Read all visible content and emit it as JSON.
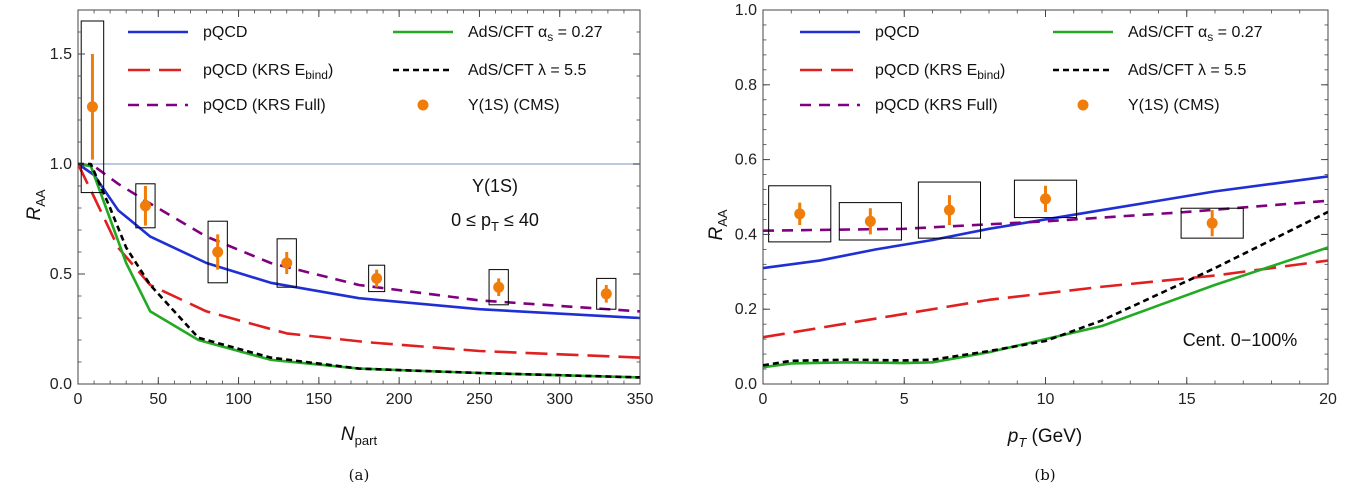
{
  "chart_data": [
    {
      "type": "line",
      "caption": "(a)",
      "xlabel": "N",
      "xlabel_sub": "part",
      "ylabel": "R",
      "ylabel_sub": "AA",
      "xlim": [
        0,
        350
      ],
      "ylim": [
        0,
        1.7
      ],
      "xticks": [
        "0",
        "50",
        "100",
        "150",
        "200",
        "250",
        "300",
        "350"
      ],
      "yticks": [
        "0.0",
        "0.5",
        "1.0",
        "1.5"
      ],
      "reference_line": 1.0,
      "annotations": [
        "Υ(1S)",
        "0 ≤ p",
        "T",
        " ≤ 40"
      ],
      "series": [
        {
          "name": "pQCD",
          "color": "#1f2fd4",
          "style": "solid",
          "x": [
            0,
            10,
            25,
            45,
            80,
            120,
            175,
            250,
            350
          ],
          "y": [
            1.0,
            0.95,
            0.79,
            0.67,
            0.55,
            0.46,
            0.39,
            0.34,
            0.3
          ]
        },
        {
          "name": "pQCD (KRS E",
          "name_sub": "bind",
          "name_suffix": ")",
          "color": "#e02020",
          "style": "longdash",
          "x": [
            0,
            10,
            25,
            45,
            80,
            130,
            180,
            250,
            350
          ],
          "y": [
            1.0,
            0.85,
            0.62,
            0.45,
            0.33,
            0.23,
            0.19,
            0.15,
            0.12
          ]
        },
        {
          "name": "pQCD (KRS Full)",
          "color": "#800080",
          "style": "dash",
          "x": [
            0,
            10,
            25,
            45,
            80,
            120,
            175,
            250,
            350
          ],
          "y": [
            1.0,
            0.99,
            0.91,
            0.82,
            0.67,
            0.55,
            0.45,
            0.38,
            0.33
          ]
        },
        {
          "name": "AdS/CFT α",
          "name_sub": "s",
          "name_suffix": " = 0.27",
          "color": "#22aa22",
          "style": "solid",
          "x": [
            0,
            8,
            20,
            30,
            45,
            75,
            120,
            175,
            250,
            350
          ],
          "y": [
            1.0,
            0.99,
            0.75,
            0.55,
            0.33,
            0.2,
            0.11,
            0.07,
            0.05,
            0.03
          ]
        },
        {
          "name": "AdS/CFT λ = 5.5",
          "color": "#000000",
          "style": "shortdash",
          "x": [
            0,
            8,
            20,
            30,
            45,
            75,
            120,
            175,
            250,
            350
          ],
          "y": [
            1.0,
            1.0,
            0.8,
            0.62,
            0.45,
            0.21,
            0.12,
            0.07,
            0.05,
            0.03
          ]
        },
        {
          "name": "Υ(1S) (CMS)",
          "color": "#f07d0a",
          "style": "points",
          "x": [
            9,
            42,
            87,
            130,
            186,
            262,
            329
          ],
          "y": [
            1.26,
            0.81,
            0.6,
            0.55,
            0.48,
            0.44,
            0.41
          ],
          "err": [
            0.24,
            0.09,
            0.08,
            0.05,
            0.04,
            0.04,
            0.04
          ],
          "sys_halfwidth_x": [
            7,
            6,
            6,
            6,
            5,
            6,
            6
          ],
          "sys": [
            0.39,
            0.1,
            0.14,
            0.11,
            0.06,
            0.08,
            0.07
          ]
        }
      ]
    },
    {
      "type": "line",
      "caption": "(b)",
      "xlabel": "p",
      "xlabel_sub": "T",
      "xlabel_suffix": "  (GeV)",
      "ylabel": "R",
      "ylabel_sub": "AA",
      "xlim": [
        0,
        20
      ],
      "ylim": [
        0,
        1.0
      ],
      "xticks": [
        "0",
        "5",
        "10",
        "15",
        "20"
      ],
      "yticks": [
        "0.0",
        "0.2",
        "0.4",
        "0.6",
        "0.8",
        "1.0"
      ],
      "annotations": [
        "Cent. 0−100%"
      ],
      "series": [
        {
          "name": "pQCD",
          "color": "#1f2fd4",
          "style": "solid",
          "x": [
            0,
            2,
            4,
            6,
            8,
            10,
            12,
            14,
            16,
            18,
            20
          ],
          "y": [
            0.31,
            0.33,
            0.36,
            0.385,
            0.415,
            0.44,
            0.465,
            0.49,
            0.515,
            0.535,
            0.555
          ]
        },
        {
          "name": "pQCD (KRS E",
          "name_sub": "bind",
          "name_suffix": ")",
          "color": "#e02020",
          "style": "longdash",
          "x": [
            0,
            4,
            8,
            12,
            16,
            20
          ],
          "y": [
            0.125,
            0.175,
            0.225,
            0.26,
            0.29,
            0.33
          ]
        },
        {
          "name": "pQCD (KRS Full)",
          "color": "#800080",
          "style": "dash",
          "x": [
            0,
            5,
            10,
            15,
            20
          ],
          "y": [
            0.41,
            0.415,
            0.435,
            0.46,
            0.49
          ]
        },
        {
          "name": "AdS/CFT α",
          "name_sub": "s",
          "name_suffix": " = 0.27",
          "color": "#22aa22",
          "style": "solid",
          "x": [
            0,
            1,
            3,
            5,
            6,
            8,
            10,
            12,
            14,
            16,
            18,
            20
          ],
          "y": [
            0.045,
            0.055,
            0.058,
            0.056,
            0.058,
            0.085,
            0.12,
            0.155,
            0.21,
            0.265,
            0.315,
            0.365
          ]
        },
        {
          "name": "AdS/CFT λ = 5.5",
          "color": "#000000",
          "style": "shortdash",
          "x": [
            0,
            1,
            3,
            5,
            6,
            8,
            10,
            12,
            14,
            16,
            18,
            20
          ],
          "y": [
            0.05,
            0.062,
            0.065,
            0.063,
            0.065,
            0.088,
            0.115,
            0.17,
            0.24,
            0.31,
            0.385,
            0.46
          ]
        },
        {
          "name": "Υ(1S) (CMS)",
          "color": "#f07d0a",
          "style": "points",
          "x": [
            1.3,
            3.8,
            6.6,
            10.0,
            15.9
          ],
          "y": [
            0.455,
            0.435,
            0.465,
            0.495,
            0.43
          ],
          "err": [
            0.03,
            0.035,
            0.04,
            0.035,
            0.035
          ],
          "sys_halfwidth_x": [
            1.1,
            1.1,
            1.1,
            1.1,
            1.1
          ],
          "sys": [
            0.075,
            0.05,
            0.075,
            0.05,
            0.04
          ]
        }
      ]
    }
  ]
}
